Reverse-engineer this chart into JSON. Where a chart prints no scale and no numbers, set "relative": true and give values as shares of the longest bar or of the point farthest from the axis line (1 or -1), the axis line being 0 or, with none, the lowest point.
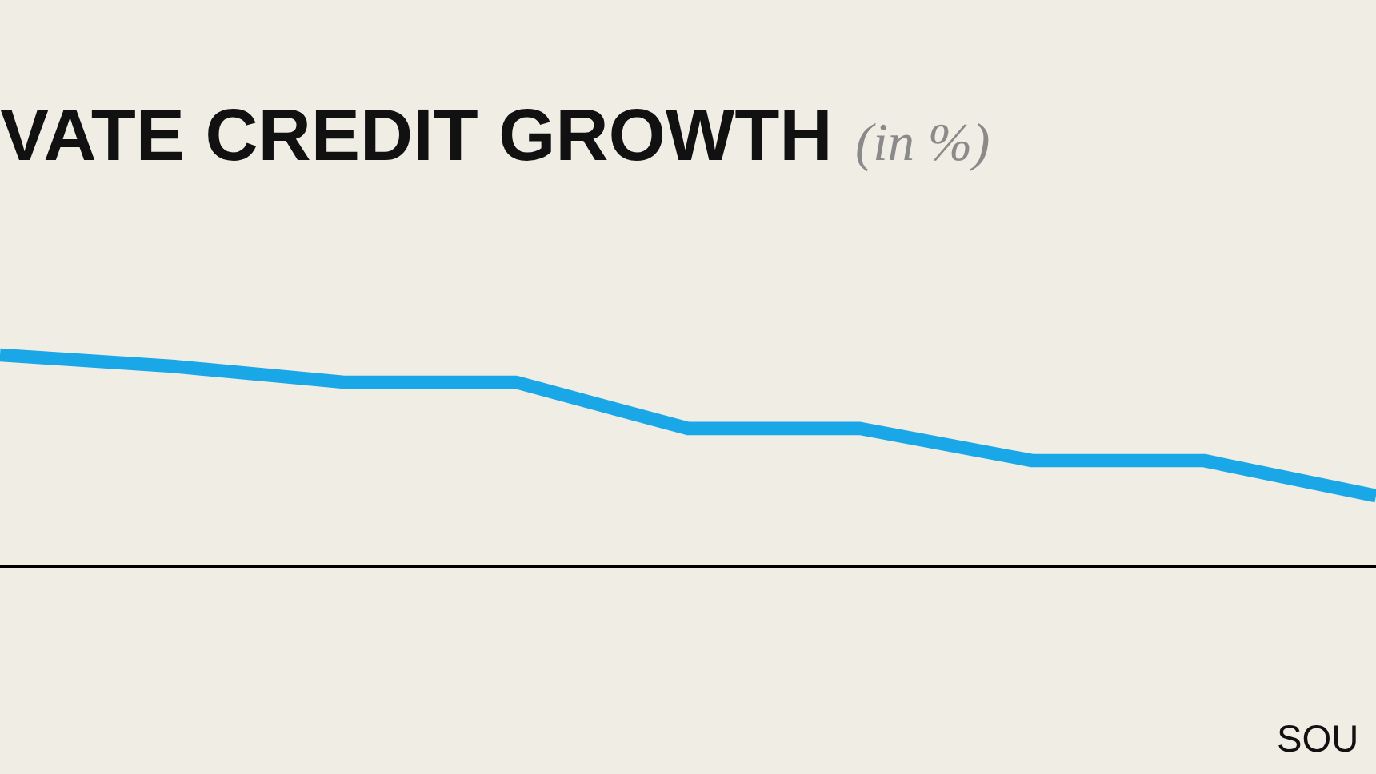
{
  "chart_data": {
    "type": "line",
    "title": "VATE CREDIT GROWTH",
    "subtitle": "(in %)",
    "annotations": [
      "SOU"
    ],
    "relative": true,
    "categories": [
      null,
      null,
      null,
      null,
      null,
      null,
      null,
      null,
      null
    ],
    "series": [
      {
        "color": "#1aa7e8",
        "values": [
          1,
          0.947,
          0.871,
          0.871,
          0.652,
          0.652,
          0.5,
          0.5,
          0.333
        ]
      }
    ],
    "line_style": "solid",
    "marker": "none",
    "grid": false,
    "legend": false
  }
}
